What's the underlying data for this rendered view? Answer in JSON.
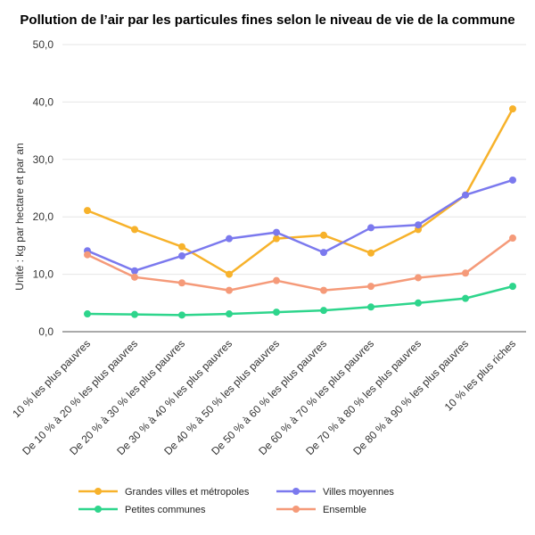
{
  "chart_data": {
    "type": "line",
    "title": "Pollution de l’air par les particules fines selon le niveau de vie de la commune",
    "ylabel": "Unité : kg par hectare et par an",
    "xlabel": "",
    "ylim": [
      0,
      50
    ],
    "yticks": [
      "0,0",
      "10,0",
      "20,0",
      "30,0",
      "40,0",
      "50,0"
    ],
    "ytick_values": [
      0,
      10,
      20,
      30,
      40,
      50
    ],
    "grid": true,
    "legend_position": "bottom",
    "categories": [
      "10 % les plus pauvres",
      "De 10 % à 20 % les plus pauvres",
      "De 20 % à 30 % les plus pauvres",
      "De 30 % à 40 % les plus pauvres",
      "De 40 % à 50 % les plus pauvres",
      "De 50 % à 60 % les plus pauvres",
      "De 60 % à 70 % les plus pauvres",
      "De 70 % à 80 % les plus pauvres",
      "De 80 % à 90 % les plus pauvres",
      "10 % les plus riches"
    ],
    "series": [
      {
        "name": "Grandes villes et métropoles",
        "color": "#f7b22b",
        "values": [
          21.1,
          17.8,
          14.8,
          10.0,
          16.2,
          16.8,
          13.7,
          17.8,
          23.8,
          38.8
        ]
      },
      {
        "name": "Villes moyennes",
        "color": "#7b79ee",
        "values": [
          14.1,
          10.6,
          13.2,
          16.2,
          17.3,
          13.8,
          18.1,
          18.6,
          23.8,
          26.4
        ]
      },
      {
        "name": "Petites communes",
        "color": "#2ed58c",
        "values": [
          3.1,
          3.0,
          2.9,
          3.1,
          3.4,
          3.7,
          4.3,
          5.0,
          5.8,
          7.9
        ]
      },
      {
        "name": "Ensemble",
        "color": "#f59a79",
        "values": [
          13.4,
          9.5,
          8.5,
          7.2,
          8.9,
          7.2,
          7.9,
          9.4,
          10.2,
          16.3
        ]
      }
    ]
  }
}
